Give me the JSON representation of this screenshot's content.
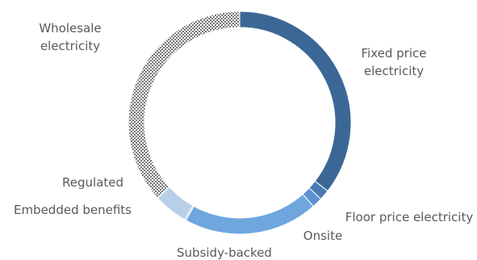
{
  "chart_data": {
    "type": "pie",
    "variant": "doughnut",
    "title": "",
    "legend": "none",
    "slices": [
      {
        "name": "Fixed price electricity",
        "value": 35.5,
        "color": "#3B6796",
        "pattern": "solid",
        "label_lines": [
          "Fixed price",
          "electricity"
        ]
      },
      {
        "name": "Floor price electricity",
        "value": 1.5,
        "color": "#4A7BB0",
        "pattern": "solid",
        "label_lines": [
          "Floor price electricity"
        ]
      },
      {
        "name": "Onsite",
        "value": 1.5,
        "color": "#5B93D1",
        "pattern": "solid",
        "label_lines": [
          "Onsite"
        ]
      },
      {
        "name": "Subsidy-backed",
        "value": 19.5,
        "color": "#6FA6DE",
        "pattern": "solid",
        "label_lines": [
          "Subsidy-backed"
        ]
      },
      {
        "name": "Embedded benefits",
        "value": 0.2,
        "color": "#9BBFE6",
        "pattern": "solid",
        "label_lines": [
          "Embedded benefits"
        ]
      },
      {
        "name": "Regulated",
        "value": 5.0,
        "color": "#B8CFEA",
        "pattern": "solid",
        "label_lines": [
          "Regulated"
        ]
      },
      {
        "name": "Wholesale electricity",
        "value": 36.8,
        "color": "#8C8C8C",
        "pattern": "checker",
        "label_lines": [
          "Wholesale",
          "electricity"
        ]
      }
    ]
  }
}
